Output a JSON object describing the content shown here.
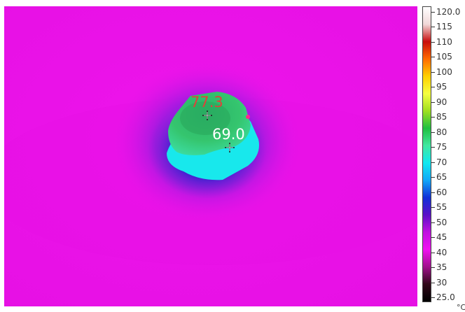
{
  "thermal": {
    "markers": [
      {
        "label": "77.3",
        "color": "#e0413a"
      },
      {
        "label": "69.0",
        "color": "#ffffff"
      }
    ]
  },
  "scale": {
    "unit": "°C",
    "ticks": [
      "120.0",
      "115",
      "110",
      "105",
      "100",
      "95",
      "90",
      "85",
      "80",
      "75",
      "70",
      "65",
      "60",
      "55",
      "50",
      "45",
      "40",
      "35",
      "30",
      "25.0"
    ],
    "gradient": [
      "#ffffff",
      "#f0d8d8",
      "#c80c0c",
      "#ff6a00",
      "#ffd000",
      "#f5ff40",
      "#a0e020",
      "#20c040",
      "#40e8a0",
      "#10e8f0",
      "#10a8f8",
      "#1030d8",
      "#5a10c8",
      "#c010e0",
      "#f010f0",
      "#a0108c",
      "#300818",
      "#000000"
    ]
  }
}
